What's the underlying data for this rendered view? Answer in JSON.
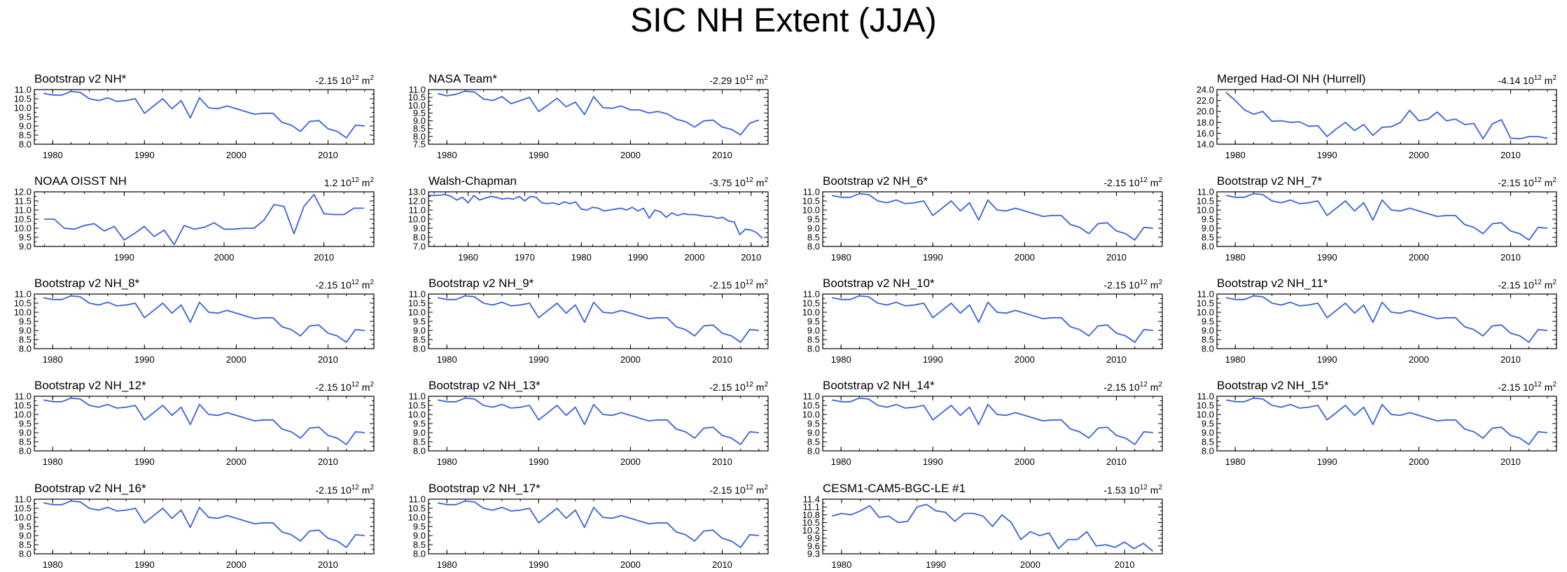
{
  "title": "SIC NH Extent (JJA)",
  "line_color": "#3a63d8",
  "chart_data": [
    {
      "type": "line",
      "title": "Bootstrap v2 NH*",
      "trend": "-2.15 10",
      "trend_exp": "12",
      "trend_unit": " m",
      "trend_unit_exp": "2",
      "col": 0,
      "row": 0,
      "xlim": [
        1978,
        2015
      ],
      "xticks": [
        1980,
        1990,
        2000,
        2010
      ],
      "ylim": [
        8.0,
        11.0
      ],
      "yticks": [
        "8.0",
        "8.5",
        "9.0",
        "9.5",
        "10.0",
        "10.5",
        "11.0"
      ],
      "x": [
        1979,
        1980,
        1981,
        1982,
        1983,
        1984,
        1985,
        1986,
        1987,
        1988,
        1989,
        1990,
        1991,
        1992,
        1993,
        1994,
        1995,
        1996,
        1997,
        1998,
        1999,
        2000,
        2001,
        2002,
        2003,
        2004,
        2005,
        2006,
        2007,
        2008,
        2009,
        2010,
        2011,
        2012,
        2013,
        2014
      ],
      "y": [
        10.8,
        10.7,
        10.7,
        10.9,
        10.85,
        10.5,
        10.4,
        10.55,
        10.35,
        10.4,
        10.5,
        9.7,
        10.1,
        10.5,
        9.95,
        10.4,
        9.45,
        10.55,
        10.0,
        9.95,
        10.1,
        9.95,
        9.8,
        9.65,
        9.7,
        9.7,
        9.2,
        9.05,
        8.7,
        9.25,
        9.3,
        8.85,
        8.7,
        8.35,
        9.05,
        9.0
      ]
    },
    {
      "type": "line",
      "title": "NASA Team*",
      "trend": "-2.29 10",
      "trend_exp": "12",
      "trend_unit": " m",
      "trend_unit_exp": "2",
      "col": 1,
      "row": 0,
      "xlim": [
        1978,
        2015
      ],
      "xticks": [
        1980,
        1990,
        2000,
        2010
      ],
      "ylim": [
        7.5,
        11.0
      ],
      "yticks": [
        "7.5",
        "8.0",
        "8.5",
        "9.0",
        "9.5",
        "10.0",
        "10.5",
        "11.0"
      ],
      "x": [
        1979,
        1980,
        1981,
        1982,
        1983,
        1984,
        1985,
        1986,
        1987,
        1988,
        1989,
        1990,
        1991,
        1992,
        1993,
        1994,
        1995,
        1996,
        1997,
        1998,
        1999,
        2000,
        2001,
        2002,
        2003,
        2004,
        2005,
        2006,
        2007,
        2008,
        2009,
        2010,
        2011,
        2012,
        2013,
        2014
      ],
      "y": [
        10.75,
        10.6,
        10.7,
        10.9,
        10.85,
        10.4,
        10.3,
        10.55,
        10.1,
        10.3,
        10.5,
        9.6,
        10.0,
        10.45,
        9.9,
        10.2,
        9.4,
        10.55,
        9.85,
        9.8,
        9.95,
        9.7,
        9.7,
        9.5,
        9.6,
        9.45,
        9.1,
        8.95,
        8.6,
        9.0,
        9.05,
        8.6,
        8.45,
        8.1,
        8.85,
        9.05
      ]
    },
    {
      "type": "line",
      "title": "Merged Had-OI NH (Hurrell)",
      "trend": "-4.14 10",
      "trend_exp": "12",
      "trend_unit": " m",
      "trend_unit_exp": "2",
      "col": 3,
      "row": 0,
      "xlim": [
        1978,
        2015
      ],
      "xticks": [
        1980,
        1990,
        2000,
        2010
      ],
      "ylim": [
        14.0,
        24.0
      ],
      "yticks": [
        "14.0",
        "16.0",
        "18.0",
        "20.0",
        "22.0",
        "24.0"
      ],
      "x": [
        1979,
        1980,
        1981,
        1982,
        1983,
        1984,
        1985,
        1986,
        1987,
        1988,
        1989,
        1990,
        1991,
        1992,
        1993,
        1994,
        1995,
        1996,
        1997,
        1998,
        1999,
        2000,
        2001,
        2002,
        2003,
        2004,
        2005,
        2006,
        2007,
        2008,
        2009,
        2010,
        2011,
        2012,
        2013,
        2014
      ],
      "y": [
        23.5,
        22.0,
        20.3,
        19.5,
        20.0,
        18.2,
        18.3,
        18.0,
        18.1,
        17.3,
        17.4,
        15.4,
        16.8,
        18.0,
        16.5,
        17.6,
        15.6,
        17.1,
        17.2,
        18.0,
        20.2,
        18.3,
        18.6,
        19.9,
        18.3,
        18.6,
        17.6,
        17.8,
        15.0,
        17.7,
        18.5,
        15.1,
        15.0,
        15.4,
        15.4,
        15.1
      ]
    },
    {
      "type": "line",
      "title": "NOAA OISST NH",
      "trend": "1.2 10",
      "trend_exp": "12",
      "trend_unit": " m",
      "trend_unit_exp": "2",
      "col": 0,
      "row": 1,
      "xlim": [
        1981,
        2015
      ],
      "xticks": [
        1990,
        2000,
        2010
      ],
      "ylim": [
        9.0,
        12.0
      ],
      "yticks": [
        "9.0",
        "9.5",
        "10.0",
        "10.5",
        "11.0",
        "11.5",
        "12.0"
      ],
      "x": [
        1982,
        1983,
        1984,
        1985,
        1986,
        1987,
        1988,
        1989,
        1990,
        1991,
        1992,
        1993,
        1994,
        1995,
        1996,
        1997,
        1998,
        1999,
        2000,
        2001,
        2002,
        2003,
        2004,
        2005,
        2006,
        2007,
        2008,
        2009,
        2010,
        2011,
        2012,
        2013,
        2014
      ],
      "y": [
        10.5,
        10.5,
        10.0,
        9.95,
        10.15,
        10.25,
        9.85,
        10.1,
        9.35,
        9.7,
        10.1,
        9.55,
        9.9,
        9.1,
        10.15,
        9.95,
        10.05,
        10.3,
        9.95,
        9.95,
        10.0,
        10.0,
        10.45,
        11.3,
        11.2,
        9.7,
        11.2,
        11.85,
        10.8,
        10.75,
        10.75,
        11.1,
        11.1
      ]
    },
    {
      "type": "line",
      "title": "Walsh-Chapman",
      "trend": "-3.75 10",
      "trend_exp": "12",
      "trend_unit": " m",
      "trend_unit_exp": "2",
      "col": 1,
      "row": 1,
      "xlim": [
        1953,
        2013
      ],
      "xticks": [
        1960,
        1970,
        1980,
        1990,
        2000,
        2010
      ],
      "ylim": [
        7.0,
        13.0
      ],
      "yticks": [
        "7.0",
        "8.0",
        "9.0",
        "10.0",
        "11.0",
        "12.0",
        "13.0"
      ],
      "x": [
        1953,
        1954,
        1955,
        1956,
        1957,
        1958,
        1959,
        1960,
        1961,
        1962,
        1963,
        1964,
        1965,
        1966,
        1967,
        1968,
        1969,
        1970,
        1971,
        1972,
        1973,
        1974,
        1975,
        1976,
        1977,
        1978,
        1979,
        1980,
        1981,
        1982,
        1983,
        1984,
        1985,
        1986,
        1987,
        1988,
        1989,
        1990,
        1991,
        1992,
        1993,
        1994,
        1995,
        1996,
        1997,
        1998,
        1999,
        2000,
        2001,
        2002,
        2003,
        2004,
        2005,
        2006,
        2007,
        2008,
        2009,
        2010,
        2011,
        2012
      ],
      "y": [
        12.6,
        12.6,
        12.65,
        12.7,
        12.5,
        12.1,
        12.4,
        11.8,
        12.6,
        12.1,
        12.3,
        12.5,
        12.4,
        12.2,
        12.3,
        12.2,
        12.5,
        12.0,
        12.5,
        12.4,
        11.8,
        11.7,
        11.8,
        11.6,
        11.9,
        11.7,
        11.9,
        11.1,
        11.0,
        11.3,
        11.2,
        10.9,
        11.0,
        11.1,
        11.2,
        11.0,
        11.3,
        10.9,
        11.2,
        10.1,
        11.0,
        10.8,
        10.2,
        10.7,
        10.4,
        10.6,
        10.5,
        10.5,
        10.4,
        10.3,
        10.3,
        10.1,
        10.2,
        9.8,
        9.7,
        8.3,
        8.9,
        8.8,
        8.5,
        7.9
      ]
    },
    {
      "type": "line",
      "title": "Bootstrap v2 NH_6*",
      "trend": "-2.15 10",
      "trend_exp": "12",
      "trend_unit": " m",
      "trend_unit_exp": "2",
      "col": 2,
      "row": 1,
      "xlim": [
        1978,
        2015
      ],
      "xticks": [
        1980,
        1990,
        2000,
        2010
      ],
      "ylim": [
        8.0,
        11.0
      ],
      "yticks": [
        "8.0",
        "8.5",
        "9.0",
        "9.5",
        "10.0",
        "10.5",
        "11.0"
      ],
      "ref": 0
    },
    {
      "type": "line",
      "title": "Bootstrap v2 NH_7*",
      "trend": "-2.15 10",
      "trend_exp": "12",
      "trend_unit": " m",
      "trend_unit_exp": "2",
      "col": 3,
      "row": 1,
      "xlim": [
        1978,
        2015
      ],
      "xticks": [
        1980,
        1990,
        2000,
        2010
      ],
      "ylim": [
        8.0,
        11.0
      ],
      "yticks": [
        "8.0",
        "8.5",
        "9.0",
        "9.5",
        "10.0",
        "10.5",
        "11.0"
      ],
      "ref": 0
    },
    {
      "type": "line",
      "title": "Bootstrap v2 NH_8*",
      "trend": "-2.15 10",
      "trend_exp": "12",
      "trend_unit": " m",
      "trend_unit_exp": "2",
      "col": 0,
      "row": 2,
      "xlim": [
        1978,
        2015
      ],
      "xticks": [
        1980,
        1990,
        2000,
        2010
      ],
      "ylim": [
        8.0,
        11.0
      ],
      "yticks": [
        "8.0",
        "8.5",
        "9.0",
        "9.5",
        "10.0",
        "10.5",
        "11.0"
      ],
      "ref": 0
    },
    {
      "type": "line",
      "title": "Bootstrap v2 NH_9*",
      "trend": "-2.15 10",
      "trend_exp": "12",
      "trend_unit": " m",
      "trend_unit_exp": "2",
      "col": 1,
      "row": 2,
      "xlim": [
        1978,
        2015
      ],
      "xticks": [
        1980,
        1990,
        2000,
        2010
      ],
      "ylim": [
        8.0,
        11.0
      ],
      "yticks": [
        "8.0",
        "8.5",
        "9.0",
        "9.5",
        "10.0",
        "10.5",
        "11.0"
      ],
      "ref": 0
    },
    {
      "type": "line",
      "title": "Bootstrap v2 NH_10*",
      "trend": "-2.15 10",
      "trend_exp": "12",
      "trend_unit": " m",
      "trend_unit_exp": "2",
      "col": 2,
      "row": 2,
      "xlim": [
        1978,
        2015
      ],
      "xticks": [
        1980,
        1990,
        2000,
        2010
      ],
      "ylim": [
        8.0,
        11.0
      ],
      "yticks": [
        "8.0",
        "8.5",
        "9.0",
        "9.5",
        "10.0",
        "10.5",
        "11.0"
      ],
      "ref": 0
    },
    {
      "type": "line",
      "title": "Bootstrap v2 NH_11*",
      "trend": "-2.15 10",
      "trend_exp": "12",
      "trend_unit": " m",
      "trend_unit_exp": "2",
      "col": 3,
      "row": 2,
      "xlim": [
        1978,
        2015
      ],
      "xticks": [
        1980,
        1990,
        2000,
        2010
      ],
      "ylim": [
        8.0,
        11.0
      ],
      "yticks": [
        "8.0",
        "8.5",
        "9.0",
        "9.5",
        "10.0",
        "10.5",
        "11.0"
      ],
      "ref": 0
    },
    {
      "type": "line",
      "title": "Bootstrap v2 NH_12*",
      "trend": "-2.15 10",
      "trend_exp": "12",
      "trend_unit": " m",
      "trend_unit_exp": "2",
      "col": 0,
      "row": 3,
      "xlim": [
        1978,
        2015
      ],
      "xticks": [
        1980,
        1990,
        2000,
        2010
      ],
      "ylim": [
        8.0,
        11.0
      ],
      "yticks": [
        "8.0",
        "8.5",
        "9.0",
        "9.5",
        "10.0",
        "10.5",
        "11.0"
      ],
      "ref": 0
    },
    {
      "type": "line",
      "title": "Bootstrap v2 NH_13*",
      "trend": "-2.15 10",
      "trend_exp": "12",
      "trend_unit": " m",
      "trend_unit_exp": "2",
      "col": 1,
      "row": 3,
      "xlim": [
        1978,
        2015
      ],
      "xticks": [
        1980,
        1990,
        2000,
        2010
      ],
      "ylim": [
        8.0,
        11.0
      ],
      "yticks": [
        "8.0",
        "8.5",
        "9.0",
        "9.5",
        "10.0",
        "10.5",
        "11.0"
      ],
      "ref": 0
    },
    {
      "type": "line",
      "title": "Bootstrap v2 NH_14*",
      "trend": "-2.15 10",
      "trend_exp": "12",
      "trend_unit": " m",
      "trend_unit_exp": "2",
      "col": 2,
      "row": 3,
      "xlim": [
        1978,
        2015
      ],
      "xticks": [
        1980,
        1990,
        2000,
        2010
      ],
      "ylim": [
        8.0,
        11.0
      ],
      "yticks": [
        "8.0",
        "8.5",
        "9.0",
        "9.5",
        "10.0",
        "10.5",
        "11.0"
      ],
      "ref": 0
    },
    {
      "type": "line",
      "title": "Bootstrap v2 NH_15*",
      "trend": "-2.15 10",
      "trend_exp": "12",
      "trend_unit": " m",
      "trend_unit_exp": "2",
      "col": 3,
      "row": 3,
      "xlim": [
        1978,
        2015
      ],
      "xticks": [
        1980,
        1990,
        2000,
        2010
      ],
      "ylim": [
        8.0,
        11.0
      ],
      "yticks": [
        "8.0",
        "8.5",
        "9.0",
        "9.5",
        "10.0",
        "10.5",
        "11.0"
      ],
      "ref": 0
    },
    {
      "type": "line",
      "title": "Bootstrap v2 NH_16*",
      "trend": "-2.15 10",
      "trend_exp": "12",
      "trend_unit": " m",
      "trend_unit_exp": "2",
      "col": 0,
      "row": 4,
      "xlim": [
        1978,
        2015
      ],
      "xticks": [
        1980,
        1990,
        2000,
        2010
      ],
      "ylim": [
        8.0,
        11.0
      ],
      "yticks": [
        "8.0",
        "8.5",
        "9.0",
        "9.5",
        "10.0",
        "10.5",
        "11.0"
      ],
      "ref": 0
    },
    {
      "type": "line",
      "title": "Bootstrap v2 NH_17*",
      "trend": "-2.15 10",
      "trend_exp": "12",
      "trend_unit": " m",
      "trend_unit_exp": "2",
      "col": 1,
      "row": 4,
      "xlim": [
        1978,
        2015
      ],
      "xticks": [
        1980,
        1990,
        2000,
        2010
      ],
      "ylim": [
        8.0,
        11.0
      ],
      "yticks": [
        "8.0",
        "8.5",
        "9.0",
        "9.5",
        "10.0",
        "10.5",
        "11.0"
      ],
      "ref": 0
    },
    {
      "type": "line",
      "title": "CESM1-CAM5-BGC-LE #1",
      "trend": "-1.53 10",
      "trend_exp": "12",
      "trend_unit": " m",
      "trend_unit_exp": "2",
      "col": 2,
      "row": 4,
      "xlim": [
        1978,
        2014
      ],
      "xticks": [
        1980,
        1990,
        2000,
        2010
      ],
      "ylim": [
        9.3,
        11.4
      ],
      "yticks": [
        "9.3",
        "9.6",
        "9.9",
        "10.2",
        "10.5",
        "10.8",
        "11.1",
        "11.4"
      ],
      "x": [
        1979,
        1980,
        1981,
        1982,
        1983,
        1984,
        1985,
        1986,
        1987,
        1988,
        1989,
        1990,
        1991,
        1992,
        1993,
        1994,
        1995,
        1996,
        1997,
        1998,
        1999,
        2000,
        2001,
        2002,
        2003,
        2004,
        2005,
        2006,
        2007,
        2008,
        2009,
        2010,
        2011,
        2012,
        2013
      ],
      "y": [
        10.75,
        10.85,
        10.8,
        10.95,
        11.15,
        10.7,
        10.75,
        10.5,
        10.55,
        11.1,
        11.2,
        10.95,
        10.9,
        10.55,
        10.85,
        10.85,
        10.75,
        10.35,
        10.8,
        10.5,
        9.85,
        10.15,
        10.0,
        10.1,
        9.5,
        9.85,
        9.85,
        10.15,
        9.6,
        9.65,
        9.55,
        9.75,
        9.5,
        9.7,
        9.4
      ]
    }
  ]
}
